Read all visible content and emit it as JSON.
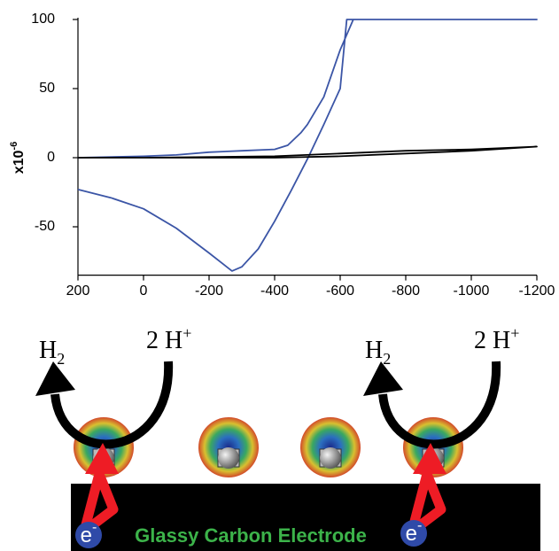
{
  "chart_data": {
    "type": "line",
    "ylabel": "x10",
    "ylabel_exponent": "-6",
    "xlim": [
      200,
      -1200
    ],
    "ylim": [
      -85,
      100
    ],
    "xticks": [
      200,
      0,
      -200,
      -400,
      -600,
      -800,
      -1000,
      -1200
    ],
    "yticks": [
      -50,
      0,
      50,
      100
    ],
    "series": [
      {
        "color": "#3b55a6",
        "x": [
          200,
          100,
          0,
          -100,
          -200,
          -270,
          -300,
          -350,
          -400,
          -450,
          -500,
          -550,
          -600,
          -620,
          -700,
          -1200,
          -640,
          -600,
          -550,
          -500,
          -480,
          -440,
          -400,
          -300,
          -200,
          -100,
          0,
          200
        ],
        "values": [
          -23,
          -29,
          -37,
          -51,
          -69,
          -82,
          -79,
          -66,
          -46,
          -24,
          -1,
          24,
          50,
          100,
          100,
          100,
          100,
          78,
          44,
          24,
          18,
          9,
          6,
          5,
          4,
          2,
          1,
          0
        ]
      },
      {
        "color": "#000000",
        "x": [
          200,
          0,
          -400,
          -600,
          -800,
          -1000,
          -1200,
          -1000,
          -800,
          -600,
          -400,
          0,
          200
        ],
        "values": [
          0,
          0,
          1,
          3,
          5,
          6,
          8,
          5,
          3,
          1,
          0,
          0,
          0
        ]
      }
    ]
  },
  "diagram": {
    "reactions": [
      {
        "product": "H",
        "product_sub": "2",
        "reactant": "2 H",
        "reactant_sup": "+"
      },
      {
        "product": "H",
        "product_sub": "2",
        "reactant": "2 H",
        "reactant_sup": "+"
      }
    ],
    "electrons": [
      {
        "symbol": "e",
        "charge": "-"
      },
      {
        "symbol": "e",
        "charge": "-"
      }
    ],
    "electrode": "Glassy Carbon Electrode"
  }
}
